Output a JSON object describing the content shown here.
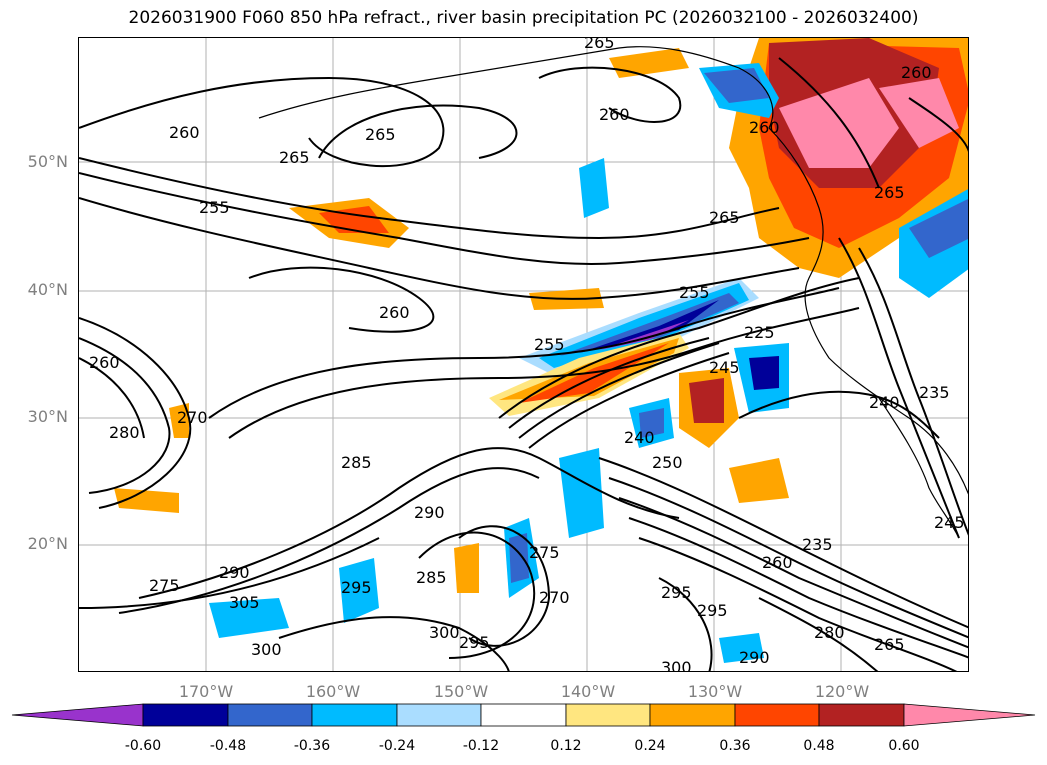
{
  "title": "2026031900 F060 850 hPa refract., river basin precipitation PC (2026032100 - 2026032400)",
  "map": {
    "lat_labels": [
      "50°N",
      "40°N",
      "30°N",
      "20°N"
    ],
    "lon_labels": [
      "170°W",
      "160°W",
      "150°W",
      "140°W",
      "130°W",
      "120°W"
    ],
    "gridline_color": "#808080",
    "contour_labels": [
      "260",
      "265",
      "265",
      "255",
      "260",
      "260",
      "265",
      "265",
      "260",
      "255",
      "255",
      "245",
      "225",
      "235",
      "240",
      "240",
      "270",
      "280",
      "260",
      "295",
      "290",
      "285",
      "275",
      "290",
      "305",
      "300",
      "300",
      "285",
      "295",
      "275",
      "270",
      "250",
      "260",
      "235",
      "295",
      "295",
      "300",
      "290",
      "280",
      "265",
      "245",
      "265",
      "260"
    ]
  },
  "colorbar": {
    "colors": [
      "#9933cc",
      "#000099",
      "#3366cc",
      "#00bbff",
      "#aaddff",
      "#ffffff",
      "#ffe680",
      "#ffa500",
      "#ff4500",
      "#b22222",
      "#ff88aa"
    ],
    "ticks": [
      "-0.60",
      "-0.48",
      "-0.36",
      "-0.24",
      "-0.12",
      "0.12",
      "0.24",
      "0.36",
      "0.48",
      "0.60"
    ]
  }
}
